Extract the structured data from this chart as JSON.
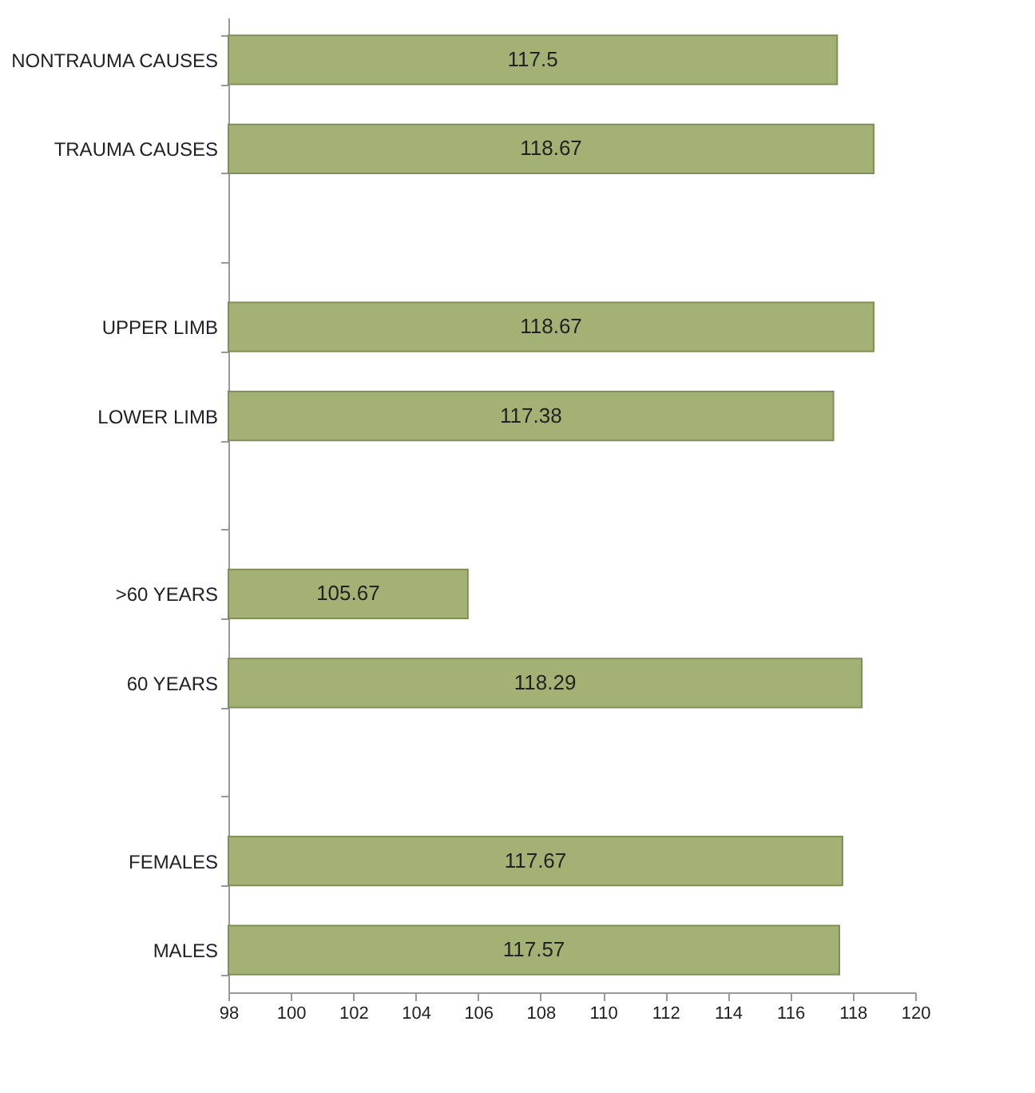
{
  "chart_data": {
    "type": "bar",
    "orientation": "horizontal",
    "categories": [
      "NONTRAUMA CAUSES",
      "TRAUMA CAUSES",
      null,
      "UPPER LIMB",
      "LOWER LIMB",
      null,
      ">60 YEARS",
      "60 YEARS",
      null,
      "FEMALES",
      "MALES"
    ],
    "values": [
      117.5,
      118.67,
      null,
      118.67,
      117.38,
      null,
      105.67,
      118.29,
      null,
      117.67,
      117.57
    ],
    "color": "#a3b274",
    "xlim": [
      98,
      120
    ],
    "xticks": [
      98,
      100,
      102,
      104,
      106,
      108,
      110,
      112,
      114,
      116,
      118,
      120
    ],
    "data_labels": true,
    "grid": false
  }
}
